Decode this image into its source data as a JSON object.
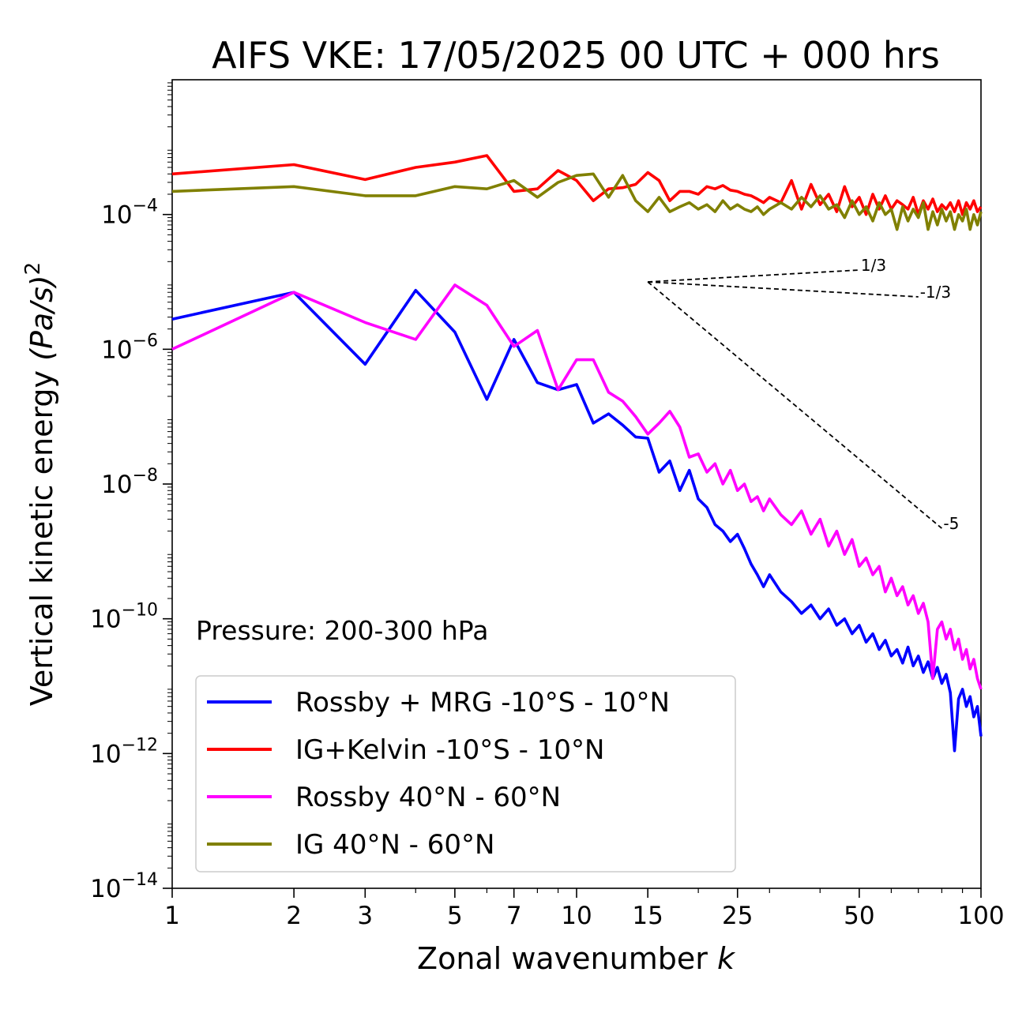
{
  "chart_data": {
    "type": "line",
    "title": "AIFS VKE: 17/05/2025 00 UTC + 000 hrs",
    "xlabel": "Zonal wavenumber",
    "xlabel_var": "k",
    "ylabel": "Vertical kinetic energy",
    "ylabel_unit": "(Pa/s)",
    "ylabel_exp": "2",
    "xscale": "log",
    "yscale": "log",
    "xlim": [
      1,
      100
    ],
    "ylim": [
      1e-14,
      0.01
    ],
    "xticks": [
      {
        "value": 1,
        "label": "1"
      },
      {
        "value": 2,
        "label": "2"
      },
      {
        "value": 3,
        "label": "3"
      },
      {
        "value": 5,
        "label": "5"
      },
      {
        "value": 7,
        "label": "7"
      },
      {
        "value": 10,
        "label": "10"
      },
      {
        "value": 15,
        "label": "15"
      },
      {
        "value": 25,
        "label": "25"
      },
      {
        "value": 50,
        "label": "50"
      },
      {
        "value": 100,
        "label": "100"
      }
    ],
    "yticks": [
      {
        "exp": -4,
        "base": "10",
        "sup": "−4"
      },
      {
        "exp": -6,
        "base": "10",
        "sup": "−6"
      },
      {
        "exp": -8,
        "base": "10",
        "sup": "−8"
      },
      {
        "exp": -10,
        "base": "10",
        "sup": "−10"
      },
      {
        "exp": -12,
        "base": "10",
        "sup": "−12"
      },
      {
        "exp": -14,
        "base": "10",
        "sup": "−14"
      }
    ],
    "annotation": "Pressure: 200-300 hPa",
    "legend_position": "lower-left",
    "reference_slopes": [
      {
        "label": "1/3",
        "origin": [
          15,
          1e-05
        ],
        "end": [
          50,
          1.5e-05
        ]
      },
      {
        "label": "-1/3",
        "origin": [
          15,
          1e-05
        ],
        "end": [
          70,
          6e-06
        ]
      },
      {
        "label": "-5",
        "origin": [
          15,
          1e-05
        ],
        "end": [
          80,
          2.2e-09
        ]
      }
    ],
    "series": [
      {
        "name": "Rossby + MRG -10°S - 10°N",
        "color": "#0000ff",
        "x": [
          1,
          2,
          3,
          4,
          5,
          6,
          7,
          8,
          9,
          10,
          11,
          12,
          13,
          14,
          15,
          16,
          17,
          18,
          19,
          20,
          21,
          22,
          23,
          24,
          25,
          26,
          27,
          28,
          29,
          30,
          32,
          34,
          36,
          38,
          40,
          42,
          44,
          46,
          48,
          50,
          52,
          54,
          56,
          58,
          60,
          62,
          64,
          66,
          68,
          70,
          72,
          74,
          76,
          78,
          80,
          82,
          84,
          86,
          88,
          90,
          92,
          94,
          96,
          98,
          100
        ],
        "y": [
          2.8e-06,
          7e-06,
          6e-07,
          7.5e-06,
          1.8e-06,
          1.8e-07,
          1.4e-06,
          3.2e-07,
          2.5e-07,
          3e-07,
          8e-08,
          1.1e-07,
          7.5e-08,
          5e-08,
          4.8e-08,
          1.5e-08,
          2.2e-08,
          8e-09,
          1.6e-08,
          6e-09,
          4.5e-09,
          2.5e-09,
          2e-09,
          1.4e-09,
          1.8e-09,
          1.1e-09,
          6.5e-10,
          4.5e-10,
          3e-10,
          4.5e-10,
          2.5e-10,
          1.8e-10,
          1.2e-10,
          1.6e-10,
          1e-10,
          1.4e-10,
          8e-11,
          1e-10,
          6e-11,
          8e-11,
          4.5e-11,
          6e-11,
          3.5e-11,
          4.8e-11,
          2.8e-11,
          3.5e-11,
          2.2e-11,
          3.8e-11,
          2e-11,
          2.8e-11,
          1.6e-11,
          2.3e-11,
          1.3e-11,
          1.9e-11,
          1.1e-11,
          1.5e-11,
          8e-12,
          1.1e-12,
          6.5e-12,
          9e-12,
          5e-12,
          7e-12,
          3.5e-12,
          5e-12,
          1.8e-12
        ]
      },
      {
        "name": "IG+Kelvin -10°S - 10°N",
        "color": "#ff0000",
        "x": [
          1,
          2,
          3,
          4,
          5,
          6,
          7,
          8,
          9,
          10,
          11,
          12,
          13,
          14,
          15,
          16,
          17,
          18,
          19,
          20,
          21,
          22,
          23,
          24,
          25,
          26,
          27,
          28,
          29,
          30,
          32,
          34,
          36,
          38,
          40,
          42,
          44,
          46,
          48,
          50,
          52,
          54,
          56,
          58,
          60,
          62,
          64,
          66,
          68,
          70,
          72,
          74,
          76,
          78,
          80,
          82,
          84,
          86,
          88,
          90,
          92,
          94,
          96,
          98,
          100
        ],
        "y": [
          0.0004,
          0.00055,
          0.00033,
          0.0005,
          0.0006,
          0.00075,
          0.00022,
          0.00024,
          0.00045,
          0.00032,
          0.00016,
          0.00024,
          0.00025,
          0.00028,
          0.00042,
          0.00032,
          0.00016,
          0.00022,
          0.00022,
          0.0002,
          0.00026,
          0.00024,
          0.00027,
          0.00023,
          0.00022,
          0.0002,
          0.00019,
          0.00017,
          0.00015,
          0.00018,
          0.00015,
          0.00032,
          0.00012,
          0.00028,
          0.00014,
          0.0002,
          0.00011,
          0.00026,
          0.00013,
          0.00018,
          0.0001,
          0.0002,
          0.00012,
          0.00019,
          0.00012,
          0.00016,
          0.00014,
          0.00012,
          0.00018,
          0.0001,
          0.00016,
          0.00012,
          0.00017,
          0.00011,
          0.00014,
          0.00012,
          0.00015,
          0.00011,
          0.00016,
          0.0001,
          0.00015,
          0.00012,
          0.00016,
          0.00011,
          0.00013
        ]
      },
      {
        "name": "Rossby 40°N - 60°N",
        "color": "#ff00ff",
        "x": [
          1,
          2,
          3,
          4,
          5,
          6,
          7,
          8,
          9,
          10,
          11,
          12,
          13,
          14,
          15,
          16,
          17,
          18,
          19,
          20,
          21,
          22,
          23,
          24,
          25,
          26,
          27,
          28,
          29,
          30,
          32,
          34,
          36,
          38,
          40,
          42,
          44,
          46,
          48,
          50,
          52,
          54,
          56,
          58,
          60,
          62,
          64,
          66,
          68,
          70,
          72,
          74,
          76,
          78,
          80,
          82,
          84,
          86,
          88,
          90,
          92,
          94,
          96,
          98,
          100
        ],
        "y": [
          1e-06,
          7e-06,
          2.5e-06,
          1.4e-06,
          9e-06,
          4.5e-06,
          1.1e-06,
          1.9e-06,
          2.5e-07,
          7e-07,
          7e-07,
          2.3e-07,
          1.7e-07,
          1e-07,
          5.5e-08,
          8e-08,
          1.2e-07,
          7e-08,
          2.5e-08,
          2.8e-08,
          1.5e-08,
          2e-08,
          1e-08,
          1.6e-08,
          8e-09,
          1e-08,
          5.5e-09,
          6.5e-09,
          4e-09,
          6e-09,
          3.5e-09,
          2.5e-09,
          4e-09,
          1.8e-09,
          3e-09,
          1.2e-09,
          2e-09,
          9e-10,
          1.5e-09,
          6e-10,
          8e-10,
          4.5e-10,
          6e-10,
          2.5e-10,
          4e-10,
          2.2e-10,
          3e-10,
          1.6e-10,
          2.2e-10,
          1.2e-10,
          1.7e-10,
          9e-11,
          1.3e-11,
          7e-11,
          9e-11,
          5e-11,
          7e-11,
          3.5e-11,
          5e-11,
          2.5e-11,
          3.5e-11,
          1.8e-11,
          2.5e-11,
          1.3e-11,
          9e-12
        ]
      },
      {
        "name": "IG 40°N - 60°N",
        "color": "#808000",
        "x": [
          1,
          2,
          3,
          4,
          5,
          6,
          7,
          8,
          9,
          10,
          11,
          12,
          13,
          14,
          15,
          16,
          17,
          18,
          19,
          20,
          21,
          22,
          23,
          24,
          25,
          26,
          27,
          28,
          29,
          30,
          32,
          34,
          36,
          38,
          40,
          42,
          44,
          46,
          48,
          50,
          52,
          54,
          56,
          58,
          60,
          62,
          64,
          66,
          68,
          70,
          72,
          74,
          76,
          78,
          80,
          82,
          84,
          86,
          88,
          90,
          92,
          94,
          96,
          98,
          100
        ],
        "y": [
          0.00022,
          0.00026,
          0.00019,
          0.00019,
          0.00026,
          0.00024,
          0.00032,
          0.00018,
          0.0003,
          0.00038,
          0.0004,
          0.00018,
          0.00038,
          0.00016,
          0.00011,
          0.00018,
          0.00011,
          0.00013,
          0.00015,
          0.00012,
          0.00014,
          0.00011,
          0.00016,
          0.00012,
          0.00014,
          0.00012,
          0.00011,
          0.00013,
          0.0001,
          0.00012,
          0.00015,
          0.00012,
          0.00018,
          0.00013,
          0.00019,
          0.00012,
          0.00014,
          9e-05,
          0.00016,
          0.0001,
          0.00013,
          8e-05,
          0.00015,
          0.0001,
          0.00012,
          6e-05,
          0.00013,
          8e-05,
          0.00012,
          9e-05,
          0.00015,
          6e-05,
          0.00011,
          7e-05,
          0.00012,
          8e-05,
          0.00011,
          6e-05,
          0.0001,
          8e-05,
          0.00012,
          6e-05,
          0.0001,
          7e-05,
          0.00011
        ]
      }
    ]
  }
}
